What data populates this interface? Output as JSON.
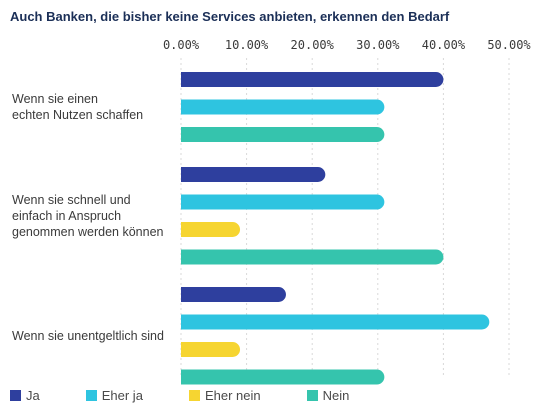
{
  "chart_data": {
    "type": "bar",
    "orientation": "horizontal",
    "title": "Auch Banken, die bisher keine Services anbieten, erkennen den Bedarf",
    "categories": [
      [
        "Wenn sie einen",
        "echten Nutzen schaffen"
      ],
      [
        "Wenn sie schnell und",
        "einfach in Anspruch",
        "genommen werden können"
      ],
      [
        "Wenn sie unentgeltlich sind"
      ]
    ],
    "xlim": [
      0,
      50
    ],
    "x_ticks": [
      "0.00%",
      "10.00%",
      "20.00%",
      "30.00%",
      "40.00%",
      "50.00%"
    ],
    "grid": true,
    "legend_position": "bottom",
    "series": [
      {
        "name": "Ja",
        "color": "#2e3f9e",
        "values": [
          40,
          22,
          16
        ]
      },
      {
        "name": "Eher ja",
        "color": "#2ec4e0",
        "values": [
          31,
          31,
          47
        ]
      },
      {
        "name": "Eher nein",
        "color": "#f6d531",
        "values": [
          null,
          9,
          9
        ]
      },
      {
        "name": "Nein",
        "color": "#35c4ad",
        "values": [
          31,
          40,
          31
        ]
      }
    ]
  }
}
